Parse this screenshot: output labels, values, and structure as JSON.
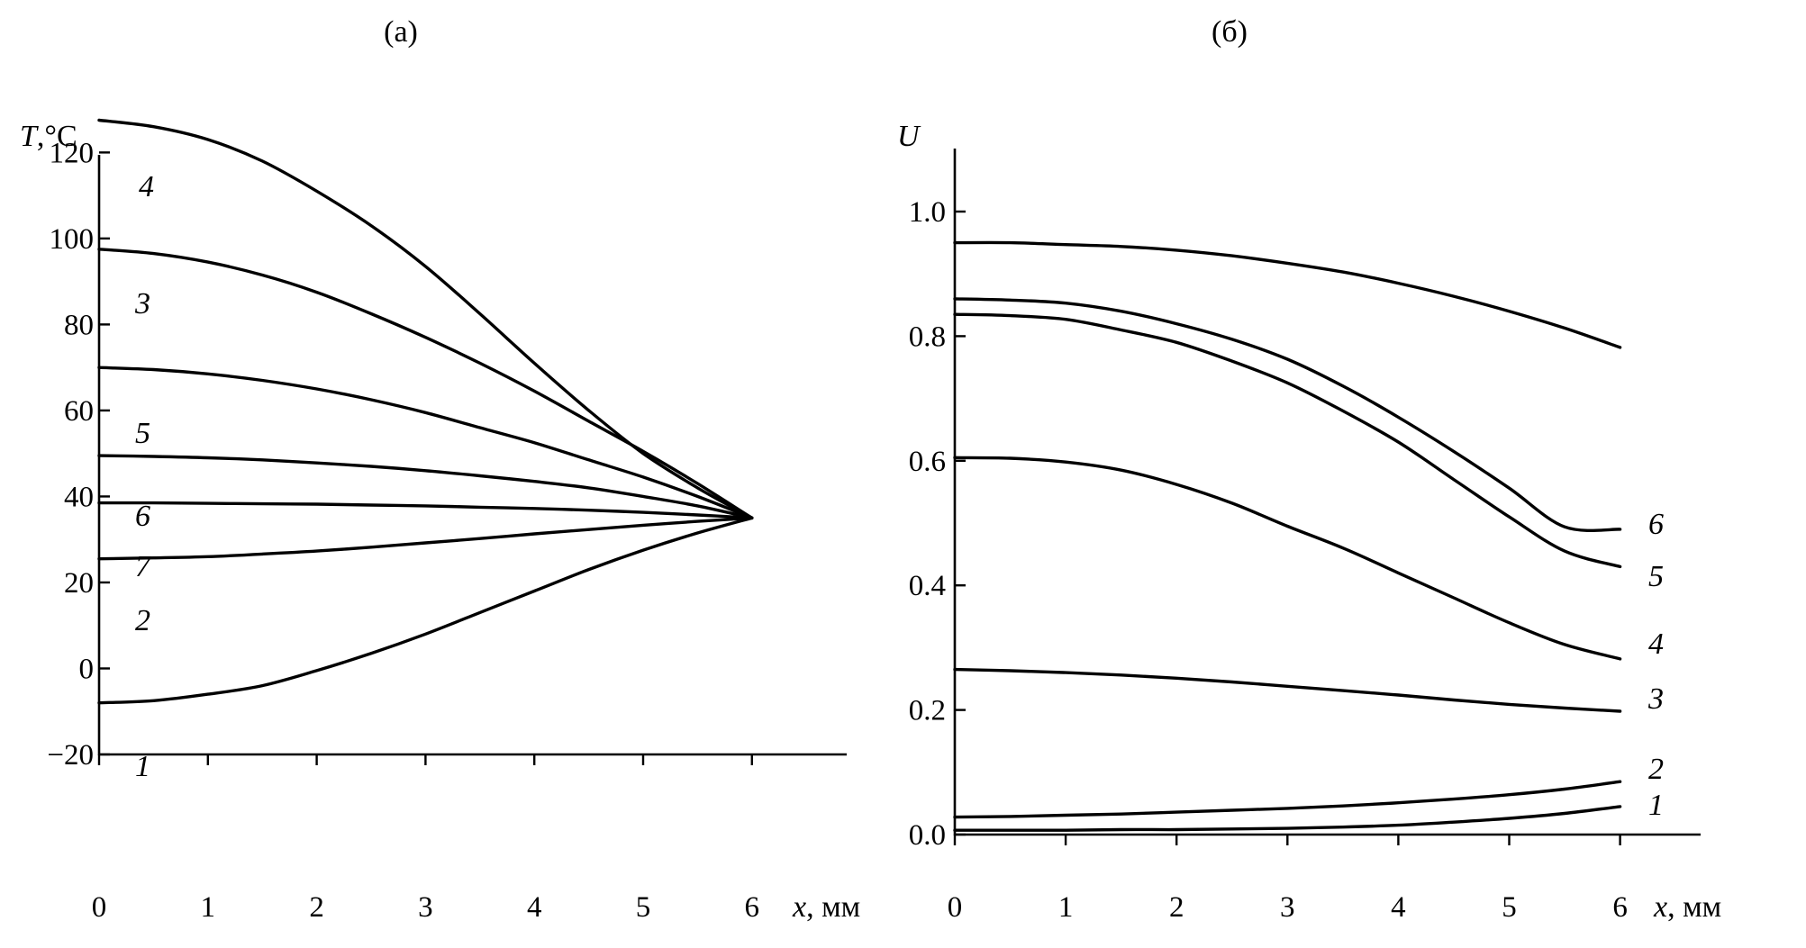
{
  "chart_data": [
    {
      "type": "line",
      "panel_label": "(а)",
      "x_label": "x",
      "x_unit": ", мм",
      "y_label": "T",
      "y_unit": ",°С",
      "xlim": [
        0,
        6.9
      ],
      "ylim": [
        -20,
        135
      ],
      "x_ticks": [
        0,
        1,
        2,
        3,
        4,
        5,
        6
      ],
      "y_ticks": [
        -20,
        0,
        20,
        40,
        60,
        80,
        100,
        120
      ],
      "y_tick_labels": [
        "−20",
        "0",
        "20",
        "40",
        "60",
        "80",
        "100",
        "120"
      ],
      "series": [
        {
          "name": "4",
          "x": [
            0,
            0.5,
            1,
            1.5,
            2,
            2.5,
            3,
            3.5,
            4,
            4.5,
            5,
            5.5,
            6
          ],
          "y": [
            127.5,
            126,
            123,
            118,
            111,
            103,
            93.5,
            82.5,
            71,
            60,
            50,
            42,
            35
          ]
        },
        {
          "name": "3",
          "x": [
            0,
            0.5,
            1,
            1.5,
            2,
            2.5,
            3,
            3.5,
            4,
            4.5,
            5,
            5.5,
            6
          ],
          "y": [
            97.5,
            96.5,
            94.5,
            91.5,
            87.5,
            82.5,
            77,
            71,
            64.5,
            57.5,
            50.5,
            43,
            35
          ]
        },
        {
          "name": "5",
          "x": [
            0,
            0.5,
            1,
            1.5,
            2,
            2.5,
            3,
            3.5,
            4,
            4.5,
            5,
            5.5,
            6
          ],
          "y": [
            70,
            69.5,
            68.5,
            67,
            65,
            62.5,
            59.5,
            56,
            52.5,
            48.5,
            44.5,
            40,
            35
          ]
        },
        {
          "name": "6",
          "x": [
            0,
            0.5,
            1,
            1.5,
            2,
            2.5,
            3,
            3.5,
            4,
            4.5,
            5,
            5.5,
            6
          ],
          "y": [
            49.5,
            49.3,
            49,
            48.5,
            47.8,
            47,
            46,
            44.8,
            43.5,
            42,
            40,
            37.8,
            35
          ]
        },
        {
          "name": "7",
          "x": [
            0,
            0.5,
            1,
            1.5,
            2,
            2.5,
            3,
            3.5,
            4,
            4.5,
            5,
            5.5,
            6
          ],
          "y": [
            38.5,
            38.5,
            38.4,
            38.3,
            38.2,
            38,
            37.8,
            37.5,
            37.2,
            36.8,
            36.3,
            35.7,
            35
          ]
        },
        {
          "name": "2",
          "x": [
            0,
            0.5,
            1,
            1.5,
            2,
            2.5,
            3,
            3.5,
            4,
            4.5,
            5,
            5.5,
            6
          ],
          "y": [
            25.5,
            25.7,
            26,
            26.6,
            27.3,
            28.2,
            29.2,
            30.2,
            31.3,
            32.3,
            33.3,
            34.2,
            35
          ]
        },
        {
          "name": "1",
          "x": [
            0,
            0.5,
            1,
            1.5,
            2,
            2.5,
            3,
            3.5,
            4,
            4.5,
            5,
            5.5,
            6
          ],
          "y": [
            -8,
            -7.5,
            -6,
            -4,
            -0.5,
            3.5,
            8,
            13,
            18,
            23,
            27.5,
            31.5,
            35
          ]
        }
      ]
    },
    {
      "type": "line",
      "panel_label": "(б)",
      "x_label": "x",
      "x_unit": ", мм",
      "y_label": "U",
      "xlim": [
        0,
        6.8
      ],
      "ylim": [
        0,
        1.1
      ],
      "x_ticks": [
        0,
        1,
        2,
        3,
        4,
        5,
        6
      ],
      "y_ticks": [
        0,
        0.2,
        0.4,
        0.6,
        0.8,
        1.0
      ],
      "y_tick_labels": [
        "0.0",
        "0.2",
        "0.4",
        "0.6",
        "0.8",
        "1.0"
      ],
      "series": [
        {
          "x": [
            0,
            0.5,
            1,
            1.5,
            2,
            2.5,
            3,
            3.5,
            4,
            4.5,
            5,
            5.5,
            6
          ],
          "y": [
            0.95,
            0.95,
            0.947,
            0.944,
            0.938,
            0.929,
            0.917,
            0.903,
            0.885,
            0.864,
            0.84,
            0.813,
            0.782
          ]
        },
        {
          "name": "6",
          "x": [
            0,
            0.5,
            1,
            1.5,
            2,
            2.5,
            3,
            3.5,
            4,
            4.5,
            5,
            5.5,
            6
          ],
          "y": [
            0.86,
            0.858,
            0.853,
            0.84,
            0.82,
            0.795,
            0.763,
            0.72,
            0.67,
            0.615,
            0.556,
            0.494,
            0.49
          ]
        },
        {
          "name": "5",
          "x": [
            0,
            0.5,
            1,
            1.5,
            2,
            2.5,
            3,
            3.5,
            4,
            4.5,
            5,
            5.5,
            6
          ],
          "y": [
            0.835,
            0.833,
            0.827,
            0.81,
            0.79,
            0.76,
            0.725,
            0.68,
            0.63,
            0.57,
            0.51,
            0.455,
            0.43
          ]
        },
        {
          "name": "4",
          "x": [
            0,
            0.5,
            1,
            1.5,
            2,
            2.5,
            3,
            3.5,
            4,
            4.5,
            5,
            5.5,
            6
          ],
          "y": [
            0.605,
            0.604,
            0.598,
            0.585,
            0.562,
            0.532,
            0.495,
            0.46,
            0.42,
            0.38,
            0.34,
            0.305,
            0.282
          ]
        },
        {
          "name": "3",
          "x": [
            0,
            0.5,
            1,
            1.5,
            2,
            2.5,
            3,
            3.5,
            4,
            4.5,
            5,
            5.5,
            6
          ],
          "y": [
            0.265,
            0.263,
            0.26,
            0.256,
            0.251,
            0.245,
            0.238,
            0.231,
            0.224,
            0.216,
            0.209,
            0.203,
            0.198
          ]
        },
        {
          "name": "2",
          "x": [
            0,
            0.5,
            1,
            1.5,
            2,
            2.5,
            3,
            3.5,
            4,
            4.5,
            5,
            5.5,
            6
          ],
          "y": [
            0.028,
            0.029,
            0.031,
            0.033,
            0.036,
            0.039,
            0.042,
            0.046,
            0.051,
            0.057,
            0.064,
            0.073,
            0.085
          ]
        },
        {
          "name": "1",
          "x": [
            0,
            0.5,
            1,
            1.5,
            2,
            2.5,
            3,
            3.5,
            4,
            4.5,
            5,
            5.5,
            6
          ],
          "y": [
            0.007,
            0.007,
            0.007,
            0.008,
            0.008,
            0.009,
            0.01,
            0.012,
            0.015,
            0.02,
            0.026,
            0.034,
            0.045
          ]
        }
      ]
    }
  ]
}
